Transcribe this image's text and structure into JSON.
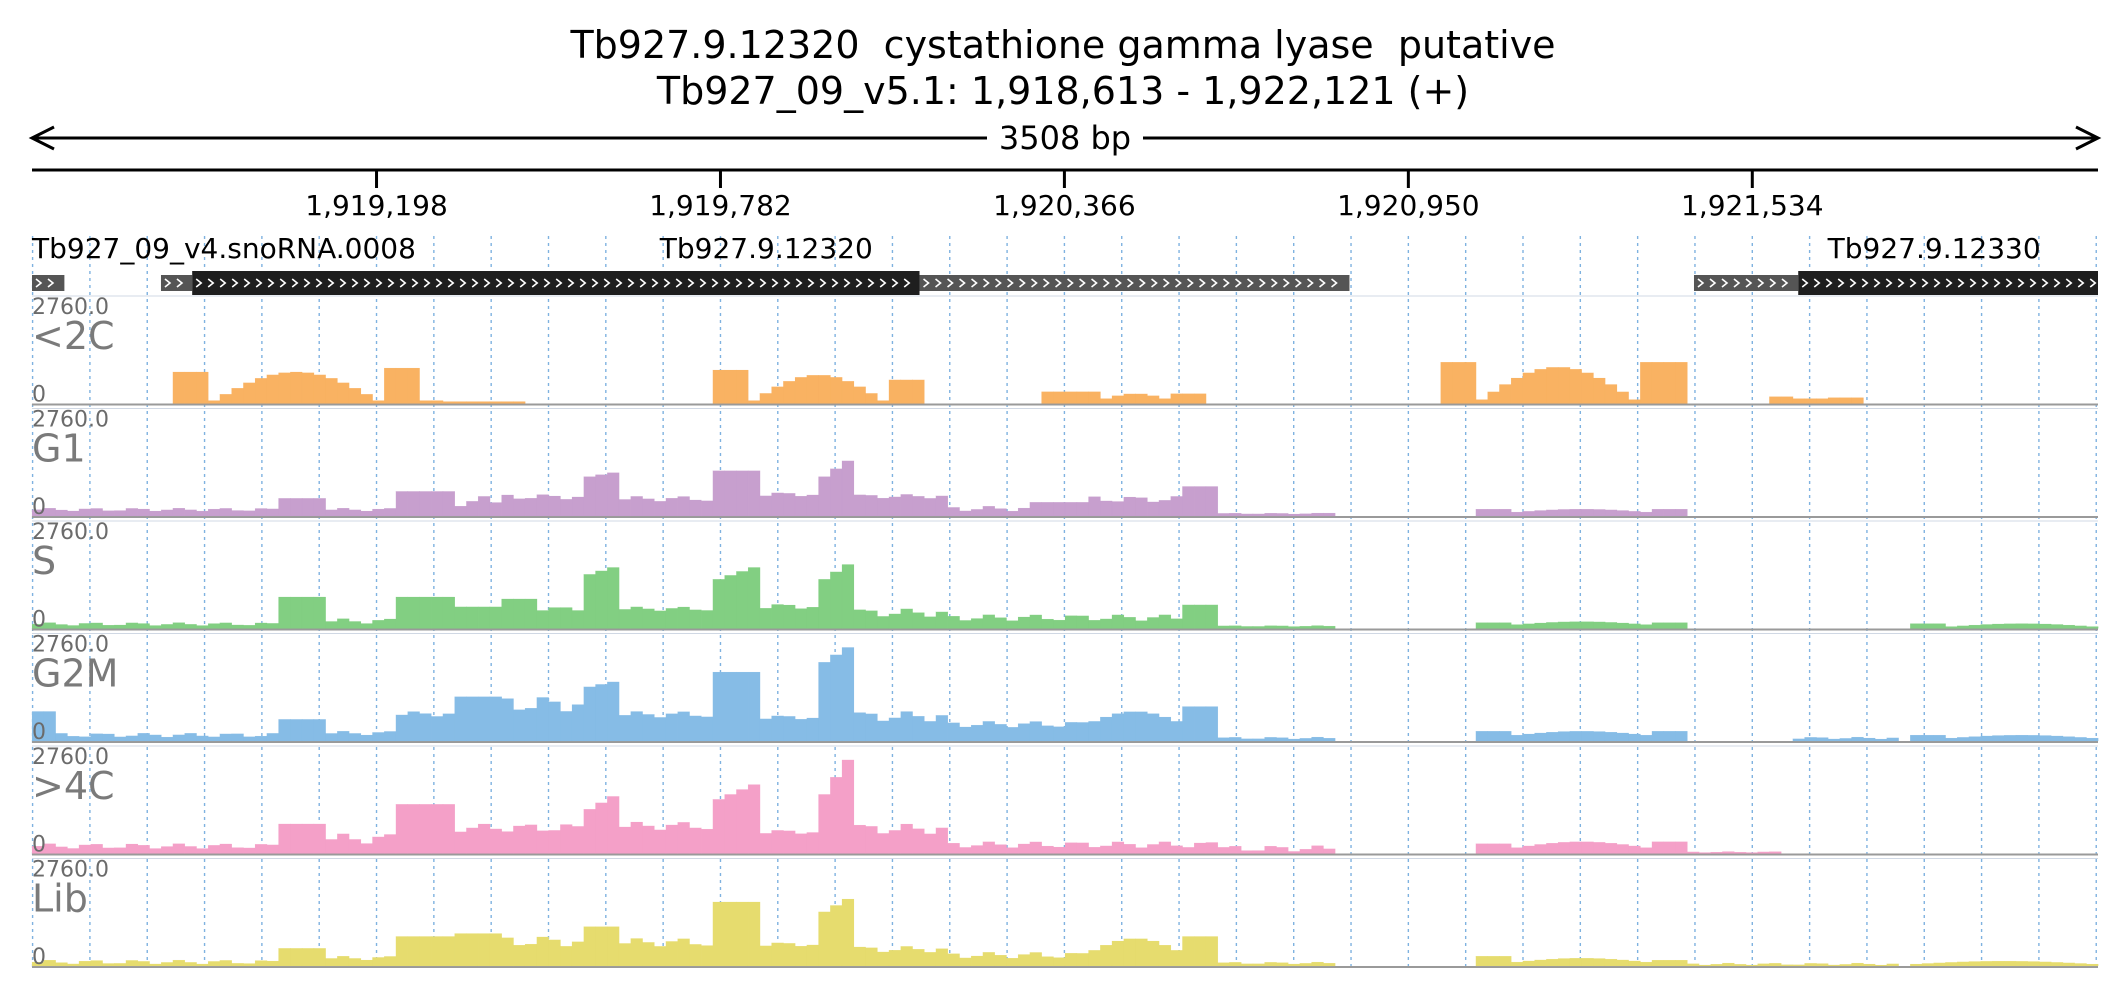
{
  "title": {
    "line1": "Tb927.9.12320  cystathione gamma lyase  putative",
    "line2": "Tb927_09_v5.1: 1,918,613 - 1,922,121 (+)"
  },
  "span_label": "3508 bp",
  "chart_data": {
    "type": "bar",
    "region": {
      "chromosome": "Tb927_09_v5.1",
      "start": 1918613,
      "end": 1922121,
      "strand": "+"
    },
    "x_ticks": [
      {
        "pos": 1919198,
        "label": "1,919,198"
      },
      {
        "pos": 1919782,
        "label": "1,919,782"
      },
      {
        "pos": 1920366,
        "label": "1,920,366"
      },
      {
        "pos": 1920950,
        "label": "1,920,950"
      },
      {
        "pos": 1921534,
        "label": "1,921,534"
      }
    ],
    "genes": [
      {
        "name": "Tb927_09_v4.snoRNA.0008",
        "label_pos": 1918613,
        "segments": [
          {
            "start": 1918613,
            "end": 1918668,
            "kind": "utr"
          }
        ]
      },
      {
        "name": "Tb927.9.12320",
        "label_pos": 1919679,
        "segments": [
          {
            "start": 1918832,
            "end": 1918885,
            "kind": "utr"
          },
          {
            "start": 1918885,
            "end": 1920120,
            "kind": "cds"
          },
          {
            "start": 1920120,
            "end": 1920850,
            "kind": "utr"
          }
        ]
      },
      {
        "name": "Tb927.9.12330",
        "label_pos": 1921662,
        "segments": [
          {
            "start": 1921435,
            "end": 1921612,
            "kind": "utr"
          },
          {
            "start": 1921612,
            "end": 1922121,
            "kind": "cds"
          }
        ]
      }
    ],
    "y_max": 2760.0,
    "y_max_label": "2760.0",
    "y_min_label": "0",
    "bin_count": 176,
    "series": [
      {
        "name": "<2C",
        "color": "#f9b262",
        "segments": [
          {
            "from": 12,
            "to": 14,
            "profile": "flat",
            "h0": 0.32
          },
          {
            "from": 15,
            "to": 29,
            "profile": "hump",
            "h0": 0.03,
            "h1": 0.32
          },
          {
            "from": 30,
            "to": 32,
            "profile": "flat",
            "h0": 0.36
          },
          {
            "from": 33,
            "to": 34,
            "profile": "flat",
            "h0": 0.03
          },
          {
            "from": 35,
            "to": 41,
            "profile": "flat",
            "h0": 0.02
          },
          {
            "from": 58,
            "to": 60,
            "profile": "flat",
            "h0": 0.34
          },
          {
            "from": 61,
            "to": 72,
            "profile": "hump",
            "h0": 0.03,
            "h1": 0.29
          },
          {
            "from": 73,
            "to": 75,
            "profile": "flat",
            "h0": 0.24
          },
          {
            "from": 86,
            "to": 90,
            "profile": "flat",
            "h0": 0.12
          },
          {
            "from": 91,
            "to": 96,
            "profile": "hump",
            "h0": 0.05,
            "h1": 0.1
          },
          {
            "from": 97,
            "to": 99,
            "profile": "flat",
            "h0": 0.1
          },
          {
            "from": 120,
            "to": 122,
            "profile": "flat",
            "h0": 0.42
          },
          {
            "from": 123,
            "to": 136,
            "profile": "hump",
            "h0": 0.04,
            "h1": 0.37
          },
          {
            "from": 137,
            "to": 140,
            "profile": "flat",
            "h0": 0.42
          },
          {
            "from": 148,
            "to": 149,
            "profile": "flat",
            "h0": 0.07
          },
          {
            "from": 150,
            "to": 152,
            "profile": "flat",
            "h0": 0.05
          },
          {
            "from": 153,
            "to": 155,
            "profile": "flat",
            "h0": 0.06
          }
        ]
      },
      {
        "name": "G1",
        "color": "#c79fce",
        "segments": [
          {
            "from": 0,
            "to": 20,
            "profile": "wave",
            "h0": 0.05,
            "h1": 0.08
          },
          {
            "from": 21,
            "to": 24,
            "profile": "flat",
            "h0": 0.18
          },
          {
            "from": 25,
            "to": 30,
            "profile": "wave",
            "h0": 0.05,
            "h1": 0.08
          },
          {
            "from": 31,
            "to": 35,
            "profile": "flat",
            "h0": 0.25
          },
          {
            "from": 36,
            "to": 39,
            "profile": "wave",
            "h0": 0.1,
            "h1": 0.2
          },
          {
            "from": 40,
            "to": 46,
            "profile": "wave",
            "h0": 0.17,
            "h1": 0.22
          },
          {
            "from": 47,
            "to": 49,
            "profile": "rise",
            "h0": 0.4,
            "h1": 0.44
          },
          {
            "from": 50,
            "to": 57,
            "profile": "wave",
            "h0": 0.15,
            "h1": 0.2
          },
          {
            "from": 58,
            "to": 61,
            "profile": "flat",
            "h0": 0.46
          },
          {
            "from": 62,
            "to": 66,
            "profile": "wave",
            "h0": 0.2,
            "h1": 0.24
          },
          {
            "from": 67,
            "to": 69,
            "profile": "rise",
            "h0": 0.4,
            "h1": 0.56
          },
          {
            "from": 70,
            "to": 77,
            "profile": "wave",
            "h0": 0.18,
            "h1": 0.22
          },
          {
            "from": 78,
            "to": 84,
            "profile": "wave",
            "h0": 0.05,
            "h1": 0.1
          },
          {
            "from": 85,
            "to": 89,
            "profile": "flat",
            "h0": 0.14
          },
          {
            "from": 90,
            "to": 97,
            "profile": "wave",
            "h0": 0.14,
            "h1": 0.2
          },
          {
            "from": 98,
            "to": 100,
            "profile": "flat",
            "h0": 0.3
          },
          {
            "from": 101,
            "to": 108,
            "profile": "wave",
            "h0": 0.02,
            "h1": 0.03
          },
          {
            "from": 109,
            "to": 110,
            "profile": "flat",
            "h0": 0.03
          },
          {
            "from": 123,
            "to": 125,
            "profile": "flat",
            "h0": 0.07
          },
          {
            "from": 126,
            "to": 137,
            "profile": "hump",
            "h0": 0.04,
            "h1": 0.07
          },
          {
            "from": 138,
            "to": 140,
            "profile": "flat",
            "h0": 0.07
          }
        ]
      },
      {
        "name": "S",
        "color": "#82cf82",
        "segments": [
          {
            "from": 0,
            "to": 20,
            "profile": "wave",
            "h0": 0.03,
            "h1": 0.06
          },
          {
            "from": 21,
            "to": 24,
            "profile": "flat",
            "h0": 0.32
          },
          {
            "from": 25,
            "to": 30,
            "profile": "wave",
            "h0": 0.05,
            "h1": 0.1
          },
          {
            "from": 31,
            "to": 35,
            "profile": "flat",
            "h0": 0.32
          },
          {
            "from": 36,
            "to": 39,
            "profile": "flat",
            "h0": 0.22
          },
          {
            "from": 40,
            "to": 42,
            "profile": "flat",
            "h0": 0.3
          },
          {
            "from": 43,
            "to": 46,
            "profile": "wave",
            "h0": 0.18,
            "h1": 0.22
          },
          {
            "from": 47,
            "to": 49,
            "profile": "rise",
            "h0": 0.55,
            "h1": 0.62
          },
          {
            "from": 50,
            "to": 57,
            "profile": "wave",
            "h0": 0.18,
            "h1": 0.22
          },
          {
            "from": 58,
            "to": 61,
            "profile": "rise",
            "h0": 0.5,
            "h1": 0.62
          },
          {
            "from": 62,
            "to": 66,
            "profile": "wave",
            "h0": 0.2,
            "h1": 0.25
          },
          {
            "from": 67,
            "to": 69,
            "profile": "rise",
            "h0": 0.5,
            "h1": 0.65
          },
          {
            "from": 70,
            "to": 77,
            "profile": "wave",
            "h0": 0.12,
            "h1": 0.2
          },
          {
            "from": 78,
            "to": 97,
            "profile": "wave",
            "h0": 0.08,
            "h1": 0.14
          },
          {
            "from": 98,
            "to": 100,
            "profile": "flat",
            "h0": 0.24
          },
          {
            "from": 101,
            "to": 110,
            "profile": "wave",
            "h0": 0.02,
            "h1": 0.03
          },
          {
            "from": 123,
            "to": 125,
            "profile": "flat",
            "h0": 0.06
          },
          {
            "from": 126,
            "to": 137,
            "profile": "hump",
            "h0": 0.04,
            "h1": 0.07
          },
          {
            "from": 138,
            "to": 140,
            "profile": "flat",
            "h0": 0.06
          },
          {
            "from": 160,
            "to": 162,
            "profile": "flat",
            "h0": 0.05
          },
          {
            "from": 163,
            "to": 175,
            "profile": "hump",
            "h0": 0.02,
            "h1": 0.05
          }
        ]
      },
      {
        "name": "G2M",
        "color": "#86bce6",
        "segments": [
          {
            "from": 0,
            "to": 1,
            "profile": "flat",
            "h0": 0.3
          },
          {
            "from": 2,
            "to": 20,
            "profile": "wave",
            "h0": 0.04,
            "h1": 0.08
          },
          {
            "from": 21,
            "to": 24,
            "profile": "flat",
            "h0": 0.22
          },
          {
            "from": 25,
            "to": 30,
            "profile": "wave",
            "h0": 0.06,
            "h1": 0.1
          },
          {
            "from": 31,
            "to": 35,
            "profile": "wave",
            "h0": 0.25,
            "h1": 0.3
          },
          {
            "from": 36,
            "to": 39,
            "profile": "flat",
            "h0": 0.45
          },
          {
            "from": 40,
            "to": 46,
            "profile": "wave",
            "h0": 0.3,
            "h1": 0.45
          },
          {
            "from": 47,
            "to": 49,
            "profile": "rise",
            "h0": 0.55,
            "h1": 0.6
          },
          {
            "from": 50,
            "to": 57,
            "profile": "wave",
            "h0": 0.24,
            "h1": 0.3
          },
          {
            "from": 58,
            "to": 61,
            "profile": "flat",
            "h0": 0.7
          },
          {
            "from": 62,
            "to": 66,
            "profile": "wave",
            "h0": 0.22,
            "h1": 0.26
          },
          {
            "from": 67,
            "to": 69,
            "profile": "rise",
            "h0": 0.8,
            "h1": 0.95
          },
          {
            "from": 70,
            "to": 77,
            "profile": "wave",
            "h0": 0.2,
            "h1": 0.3
          },
          {
            "from": 78,
            "to": 89,
            "profile": "wave",
            "h0": 0.14,
            "h1": 0.2
          },
          {
            "from": 90,
            "to": 97,
            "profile": "hump",
            "h0": 0.2,
            "h1": 0.3
          },
          {
            "from": 98,
            "to": 100,
            "profile": "flat",
            "h0": 0.35
          },
          {
            "from": 101,
            "to": 110,
            "profile": "wave",
            "h0": 0.02,
            "h1": 0.04
          },
          {
            "from": 123,
            "to": 125,
            "profile": "flat",
            "h0": 0.1
          },
          {
            "from": 126,
            "to": 137,
            "profile": "hump",
            "h0": 0.06,
            "h1": 0.1
          },
          {
            "from": 138,
            "to": 140,
            "profile": "flat",
            "h0": 0.1
          },
          {
            "from": 150,
            "to": 158,
            "profile": "wave",
            "h0": 0.02,
            "h1": 0.04
          },
          {
            "from": 160,
            "to": 162,
            "profile": "flat",
            "h0": 0.06
          },
          {
            "from": 163,
            "to": 175,
            "profile": "hump",
            "h0": 0.03,
            "h1": 0.06
          }
        ]
      },
      {
        "name": ">4C",
        "color": "#f4a0c8",
        "segments": [
          {
            "from": 0,
            "to": 20,
            "profile": "wave",
            "h0": 0.05,
            "h1": 0.1
          },
          {
            "from": 21,
            "to": 24,
            "profile": "flat",
            "h0": 0.3
          },
          {
            "from": 25,
            "to": 30,
            "profile": "wave",
            "h0": 0.1,
            "h1": 0.2
          },
          {
            "from": 31,
            "to": 35,
            "profile": "flat",
            "h0": 0.5
          },
          {
            "from": 36,
            "to": 46,
            "profile": "wave",
            "h0": 0.22,
            "h1": 0.3
          },
          {
            "from": 47,
            "to": 49,
            "profile": "rise",
            "h0": 0.45,
            "h1": 0.58
          },
          {
            "from": 50,
            "to": 57,
            "profile": "wave",
            "h0": 0.24,
            "h1": 0.32
          },
          {
            "from": 58,
            "to": 61,
            "profile": "rise",
            "h0": 0.55,
            "h1": 0.7
          },
          {
            "from": 62,
            "to": 66,
            "profile": "wave",
            "h0": 0.2,
            "h1": 0.24
          },
          {
            "from": 67,
            "to": 69,
            "profile": "rise",
            "h0": 0.6,
            "h1": 0.95
          },
          {
            "from": 70,
            "to": 77,
            "profile": "wave",
            "h0": 0.2,
            "h1": 0.3
          },
          {
            "from": 78,
            "to": 100,
            "profile": "wave",
            "h0": 0.06,
            "h1": 0.12
          },
          {
            "from": 101,
            "to": 110,
            "profile": "wave",
            "h0": 0.02,
            "h1": 0.08
          },
          {
            "from": 123,
            "to": 125,
            "profile": "flat",
            "h0": 0.1
          },
          {
            "from": 126,
            "to": 137,
            "profile": "hump",
            "h0": 0.06,
            "h1": 0.12
          },
          {
            "from": 138,
            "to": 140,
            "profile": "flat",
            "h0": 0.12
          },
          {
            "from": 141,
            "to": 148,
            "profile": "wave",
            "h0": 0.01,
            "h1": 0.02
          }
        ]
      },
      {
        "name": "Lib",
        "color": "#e6dc6e",
        "segments": [
          {
            "from": 0,
            "to": 20,
            "profile": "wave",
            "h0": 0.02,
            "h1": 0.06
          },
          {
            "from": 21,
            "to": 24,
            "profile": "flat",
            "h0": 0.18
          },
          {
            "from": 25,
            "to": 30,
            "profile": "wave",
            "h0": 0.06,
            "h1": 0.1
          },
          {
            "from": 31,
            "to": 35,
            "profile": "flat",
            "h0": 0.3
          },
          {
            "from": 36,
            "to": 39,
            "profile": "flat",
            "h0": 0.33
          },
          {
            "from": 40,
            "to": 46,
            "profile": "wave",
            "h0": 0.2,
            "h1": 0.3
          },
          {
            "from": 47,
            "to": 49,
            "profile": "flat",
            "h0": 0.4
          },
          {
            "from": 50,
            "to": 57,
            "profile": "wave",
            "h0": 0.2,
            "h1": 0.28
          },
          {
            "from": 58,
            "to": 61,
            "profile": "flat",
            "h0": 0.65
          },
          {
            "from": 62,
            "to": 66,
            "profile": "wave",
            "h0": 0.2,
            "h1": 0.24
          },
          {
            "from": 67,
            "to": 69,
            "profile": "rise",
            "h0": 0.55,
            "h1": 0.68
          },
          {
            "from": 70,
            "to": 77,
            "profile": "wave",
            "h0": 0.14,
            "h1": 0.2
          },
          {
            "from": 78,
            "to": 89,
            "profile": "wave",
            "h0": 0.08,
            "h1": 0.14
          },
          {
            "from": 90,
            "to": 97,
            "profile": "hump",
            "h0": 0.16,
            "h1": 0.28
          },
          {
            "from": 98,
            "to": 100,
            "profile": "flat",
            "h0": 0.3
          },
          {
            "from": 101,
            "to": 110,
            "profile": "wave",
            "h0": 0.02,
            "h1": 0.04
          },
          {
            "from": 123,
            "to": 125,
            "profile": "flat",
            "h0": 0.1
          },
          {
            "from": 126,
            "to": 137,
            "profile": "hump",
            "h0": 0.04,
            "h1": 0.08
          },
          {
            "from": 138,
            "to": 140,
            "profile": "flat",
            "h0": 0.06
          },
          {
            "from": 141,
            "to": 158,
            "profile": "wave",
            "h0": 0.01,
            "h1": 0.03
          },
          {
            "from": 160,
            "to": 175,
            "profile": "hump",
            "h0": 0.02,
            "h1": 0.05
          }
        ]
      }
    ],
    "grid": true
  }
}
